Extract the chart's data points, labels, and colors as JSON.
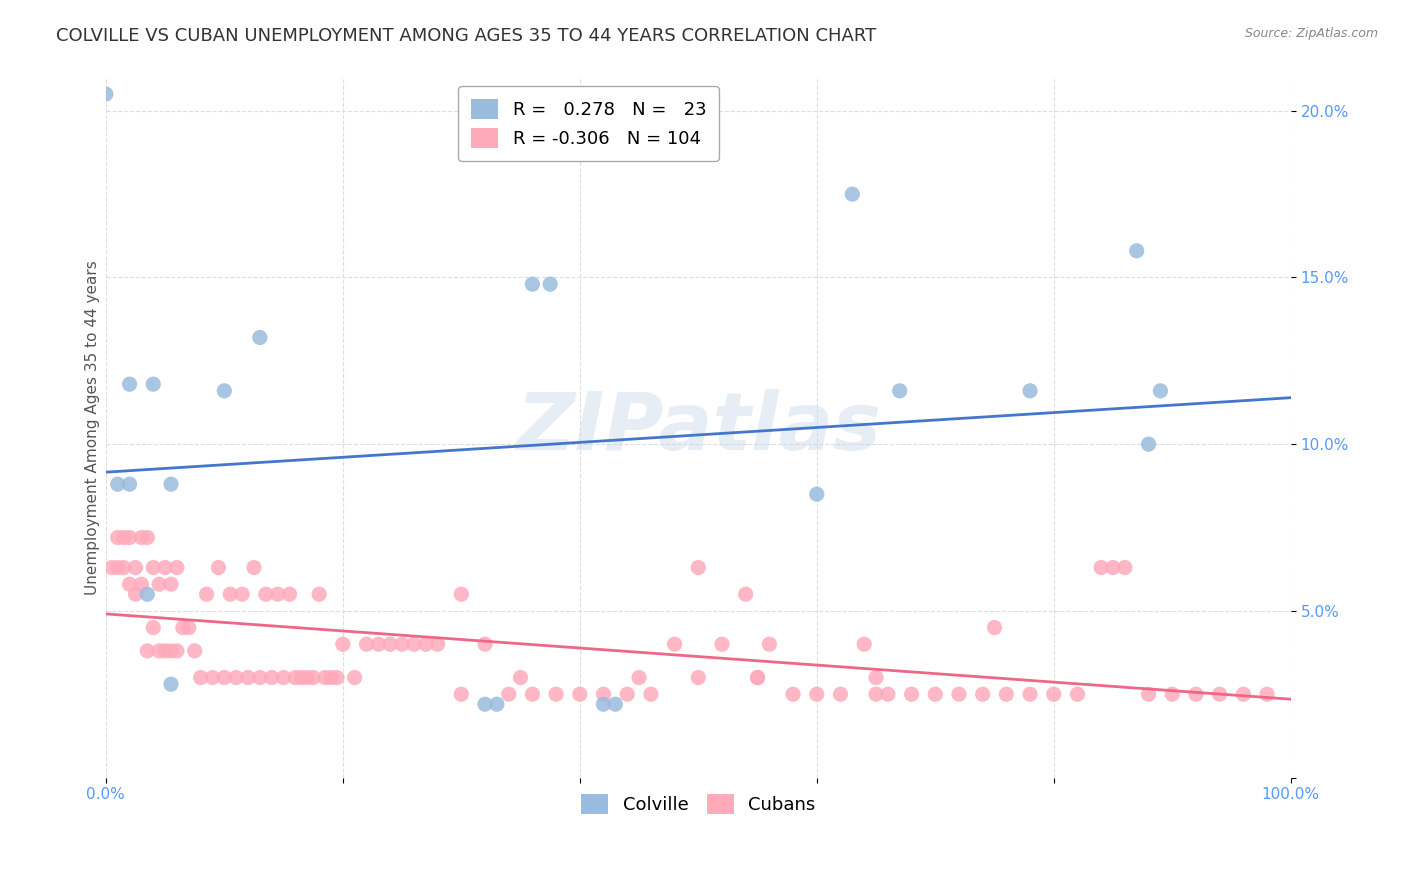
{
  "title": "COLVILLE VS CUBAN UNEMPLOYMENT AMONG AGES 35 TO 44 YEARS CORRELATION CHART",
  "source": "Source: ZipAtlas.com",
  "ylabel": "Unemployment Among Ages 35 to 44 years",
  "xlim": [
    0,
    1.0
  ],
  "ylim": [
    0,
    0.21
  ],
  "colville_color": "#99bbdd",
  "cuban_color": "#ffaabb",
  "colville_line_color": "#4477cc",
  "cuban_line_color": "#ee6688",
  "watermark_text": "ZIPatlas",
  "legend_R_colville": "0.278",
  "legend_N_colville": "23",
  "legend_R_cuban": "-0.306",
  "legend_N_cuban": "104",
  "colville_scatter_x": [
    0.01,
    0.02,
    0.04,
    0.0,
    0.02,
    0.035,
    0.13,
    0.36,
    0.375,
    0.63,
    0.6,
    0.1,
    0.78,
    0.87,
    0.88,
    0.42,
    0.43,
    0.055,
    0.32,
    0.33,
    0.67,
    0.055,
    0.89
  ],
  "colville_scatter_y": [
    0.088,
    0.118,
    0.118,
    0.205,
    0.088,
    0.055,
    0.132,
    0.148,
    0.148,
    0.175,
    0.085,
    0.116,
    0.116,
    0.158,
    0.1,
    0.022,
    0.022,
    0.028,
    0.022,
    0.022,
    0.116,
    0.088,
    0.116
  ],
  "cuban_scatter_x": [
    0.005,
    0.01,
    0.01,
    0.015,
    0.015,
    0.02,
    0.02,
    0.025,
    0.025,
    0.03,
    0.03,
    0.035,
    0.035,
    0.04,
    0.04,
    0.045,
    0.045,
    0.05,
    0.05,
    0.055,
    0.055,
    0.06,
    0.06,
    0.065,
    0.07,
    0.075,
    0.08,
    0.085,
    0.09,
    0.095,
    0.1,
    0.105,
    0.11,
    0.115,
    0.12,
    0.125,
    0.13,
    0.135,
    0.14,
    0.145,
    0.15,
    0.155,
    0.16,
    0.165,
    0.17,
    0.175,
    0.18,
    0.185,
    0.19,
    0.195,
    0.2,
    0.21,
    0.22,
    0.23,
    0.24,
    0.25,
    0.26,
    0.27,
    0.28,
    0.3,
    0.32,
    0.34,
    0.36,
    0.38,
    0.4,
    0.42,
    0.44,
    0.46,
    0.48,
    0.5,
    0.52,
    0.54,
    0.56,
    0.58,
    0.6,
    0.62,
    0.64,
    0.66,
    0.68,
    0.7,
    0.72,
    0.74,
    0.76,
    0.78,
    0.8,
    0.82,
    0.84,
    0.86,
    0.88,
    0.9,
    0.92,
    0.94,
    0.96,
    0.98,
    0.3,
    0.5,
    0.55,
    0.65,
    0.75,
    0.85,
    0.35,
    0.45,
    0.55,
    0.65
  ],
  "cuban_scatter_y": [
    0.063,
    0.063,
    0.072,
    0.063,
    0.072,
    0.058,
    0.072,
    0.055,
    0.063,
    0.058,
    0.072,
    0.038,
    0.072,
    0.045,
    0.063,
    0.038,
    0.058,
    0.038,
    0.063,
    0.038,
    0.058,
    0.038,
    0.063,
    0.045,
    0.045,
    0.038,
    0.03,
    0.055,
    0.03,
    0.063,
    0.03,
    0.055,
    0.03,
    0.055,
    0.03,
    0.063,
    0.03,
    0.055,
    0.03,
    0.055,
    0.03,
    0.055,
    0.03,
    0.03,
    0.03,
    0.03,
    0.055,
    0.03,
    0.03,
    0.03,
    0.04,
    0.03,
    0.04,
    0.04,
    0.04,
    0.04,
    0.04,
    0.04,
    0.04,
    0.025,
    0.04,
    0.025,
    0.025,
    0.025,
    0.025,
    0.025,
    0.025,
    0.025,
    0.04,
    0.063,
    0.04,
    0.055,
    0.04,
    0.025,
    0.025,
    0.025,
    0.04,
    0.025,
    0.025,
    0.025,
    0.025,
    0.025,
    0.025,
    0.025,
    0.025,
    0.025,
    0.063,
    0.063,
    0.025,
    0.025,
    0.025,
    0.025,
    0.025,
    0.025,
    0.055,
    0.03,
    0.03,
    0.03,
    0.045,
    0.063,
    0.03,
    0.03,
    0.03,
    0.025
  ],
  "background_color": "#ffffff",
  "grid_color": "#dddddd",
  "title_fontsize": 13,
  "axis_label_fontsize": 11,
  "tick_fontsize": 11,
  "legend_fontsize": 13,
  "colville_label": "Colville",
  "cuban_label": "Cubans"
}
